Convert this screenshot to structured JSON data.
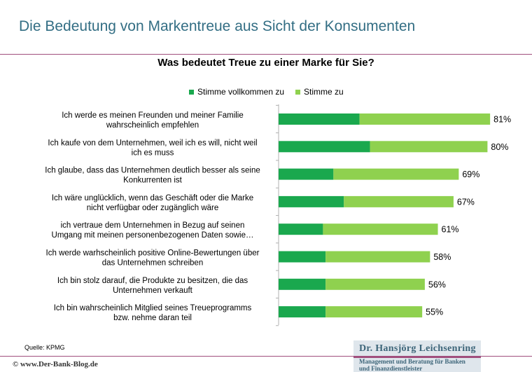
{
  "page": {
    "title": "Die Bedeutung von Markentreue aus Sicht der Konsumenten",
    "source": "Quelle: KPMG",
    "footer_left": "© www.Der-Bank-Blog.de",
    "brand_name": "Dr. Hansjörg Leichsenring",
    "brand_sub_line1": "Management und Beratung für Banken",
    "brand_sub_line2": "und Finanzdienstleister",
    "brand_color": "#3d6579",
    "rule_color": "#a04f7d"
  },
  "chart_data": {
    "type": "bar",
    "orientation": "horizontal",
    "stacked": true,
    "title": "Was bedeutet Treue zu einer Marke für Sie?",
    "categories": [
      [
        "Ich werde es meinen Freunden und meiner Familie",
        "wahrscheinlich empfehlen"
      ],
      [
        "Ich kaufe von dem Unternehmen, weil ich es will, nicht weil",
        "ich es muss"
      ],
      [
        "Ich glaube, dass das Unternehmen deutlich besser als seine",
        "Konkurrenten ist"
      ],
      [
        "Ich wäre unglücklich, wenn das Geschäft oder die Marke",
        "nicht verfügbar oder zugänglich wäre"
      ],
      [
        "ich vertraue dem Unternehmen in Bezug auf seinen",
        "Umgang mit meinen personenbezogenen Daten sowie…"
      ],
      [
        "Ich werde warhscheinlich positive Online-Bewertungen über",
        "das Unternehmen schreiben"
      ],
      [
        "Ich bin stolz darauf, die Produkte zu besitzen, die das",
        "Unternehmen verkauft"
      ],
      [
        "Ich bin wahrscheinlich Mitglied seines Treueprogramms",
        "bzw. nehme daran teil"
      ]
    ],
    "series": [
      {
        "name": "Stimme vollkommen zu",
        "color": "#1aa84e",
        "values": [
          31,
          35,
          21,
          25,
          17,
          18,
          18,
          18
        ]
      },
      {
        "name": "Stimme zu",
        "color": "#8fd14f",
        "values": [
          50,
          45,
          48,
          42,
          44,
          40,
          38,
          37
        ]
      }
    ],
    "totals": [
      "81%",
      "80%",
      "69%",
      "67%",
      "61%",
      "58%",
      "56%",
      "55%"
    ],
    "xlim": [
      0,
      100
    ],
    "legend_position": "top",
    "grid": false
  }
}
